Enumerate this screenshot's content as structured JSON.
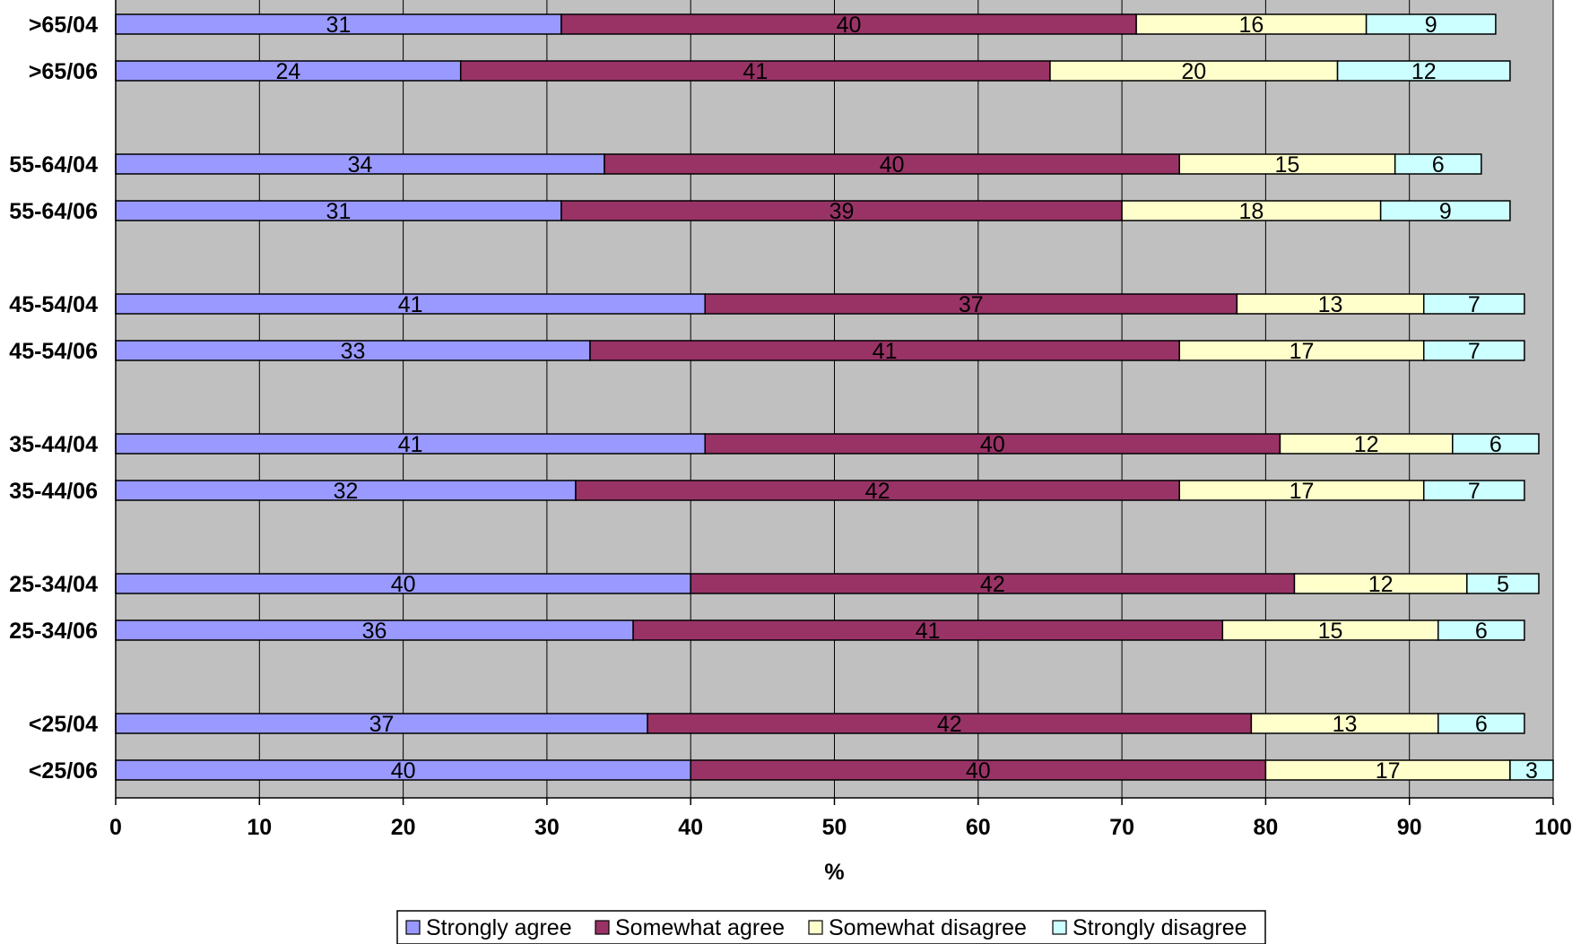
{
  "chart_data": {
    "type": "bar",
    "orientation": "horizontal",
    "stacked": true,
    "xlabel": "%",
    "xlim": [
      0,
      100
    ],
    "x_ticks": [
      "0",
      "10",
      "20",
      "30",
      "40",
      "50",
      "60",
      "70",
      "80",
      "90",
      "100"
    ],
    "grid": "vertical",
    "legend_position": "bottom",
    "plot_background": "#c0c0c0",
    "categories": [
      ">65/04",
      ">65/06",
      "55-64/04",
      "55-64/06",
      "45-54/04",
      "45-54/06",
      "35-44/04",
      "35-44/06",
      "25-34/04",
      "25-34/06",
      "<25/04",
      "<25/06"
    ],
    "series": [
      {
        "name": "Strongly agree",
        "color": "#9999ff",
        "values": [
          31,
          24,
          34,
          31,
          41,
          33,
          41,
          32,
          40,
          36,
          37,
          40
        ]
      },
      {
        "name": "Somewhat agree",
        "color": "#993366",
        "values": [
          40,
          41,
          40,
          39,
          37,
          41,
          40,
          42,
          42,
          41,
          42,
          40
        ]
      },
      {
        "name": "Somewhat disagree",
        "color": "#ffffcc",
        "values": [
          16,
          20,
          15,
          18,
          13,
          17,
          12,
          17,
          12,
          15,
          13,
          17
        ]
      },
      {
        "name": "Strongly disagree",
        "color": "#ccffff",
        "values": [
          9,
          12,
          6,
          9,
          7,
          7,
          6,
          7,
          5,
          6,
          6,
          3
        ]
      }
    ]
  }
}
